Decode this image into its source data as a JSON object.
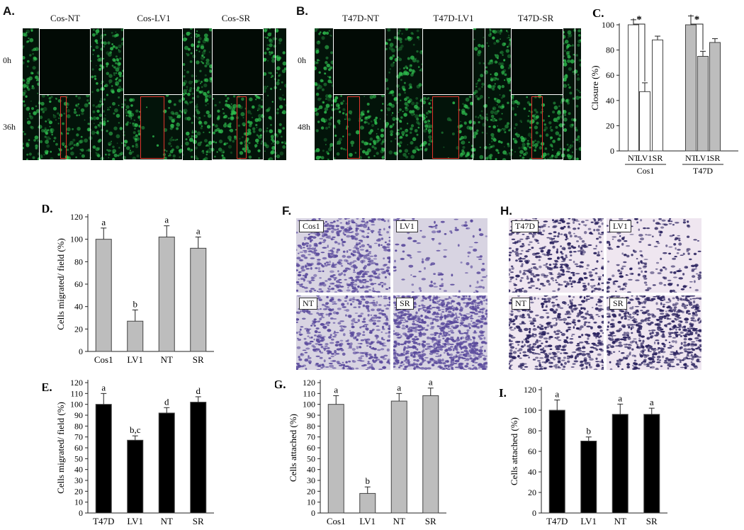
{
  "panels": {
    "A": {
      "letter": "A.",
      "labels": [
        "Cos-NT",
        "Cos-LV1",
        "Cos-SR"
      ],
      "time_top": "0h",
      "time_bottom": "36h"
    },
    "B": {
      "letter": "B.",
      "labels": [
        "T47D-NT",
        "T47D-LV1",
        "T47D-SR"
      ],
      "time_top": "0h",
      "time_bottom": "48h"
    },
    "F": {
      "letter": "F.",
      "tiles": [
        "Cos1",
        "LV1",
        "NT",
        "SR"
      ]
    },
    "H": {
      "letter": "H.",
      "tiles": [
        "T47D",
        "LV1",
        "NT",
        "SR"
      ]
    }
  },
  "colors": {
    "open_bar": "#ffffff",
    "gray_bar": "#bdbdbd",
    "black_bar": "#000000",
    "fluorescence": "#2fbf4f",
    "wound_outline": "#ffffff",
    "gap_box": "#e0342c",
    "stain_violet": "#5a4a9c"
  },
  "chart_data": [
    {
      "id": "C",
      "letter": "C.",
      "type": "bar",
      "ylabel": "Closure (%)",
      "ylim": [
        0,
        100
      ],
      "yticks": [
        0,
        20,
        40,
        60,
        80,
        100
      ],
      "categories": [
        "NT",
        "LV1",
        "SR",
        "NT",
        "LV1",
        "SR"
      ],
      "groups": [
        {
          "name": "Cos1",
          "fill": "open",
          "values": [
            100,
            47,
            88
          ],
          "errors": [
            4,
            7,
            3
          ]
        },
        {
          "name": "T47D",
          "fill": "gray",
          "values": [
            100,
            75,
            86
          ],
          "errors": [
            7,
            4,
            3
          ]
        }
      ],
      "annotations": [
        "*",
        "*"
      ],
      "legend": "none",
      "grid": false
    },
    {
      "id": "D",
      "letter": "D.",
      "type": "bar",
      "ylabel": "Cells migrated/ field (%)",
      "ylim": [
        0,
        120
      ],
      "yticks": [
        0,
        20,
        40,
        60,
        80,
        100,
        120
      ],
      "categories": [
        "Cos1",
        "LV1",
        "NT",
        "SR"
      ],
      "values": [
        100,
        27,
        102,
        92
      ],
      "errors": [
        10,
        10,
        10,
        10
      ],
      "letters": [
        "a",
        "b",
        "a",
        "a"
      ],
      "fill": "gray",
      "legend": "none",
      "grid": false
    },
    {
      "id": "E",
      "letter": "E.",
      "type": "bar",
      "ylabel": "Cells migrated/ field (%)",
      "ylim": [
        0,
        120
      ],
      "yticks": [
        0,
        10,
        20,
        30,
        40,
        50,
        60,
        70,
        80,
        90,
        100,
        110,
        120
      ],
      "categories": [
        "T47D",
        "LV1",
        "NT",
        "SR"
      ],
      "values": [
        100,
        67,
        92,
        102
      ],
      "errors": [
        10,
        4,
        5,
        5
      ],
      "letters": [
        "a",
        "b,c",
        "d",
        "d"
      ],
      "fill": "black",
      "legend": "none",
      "grid": false
    },
    {
      "id": "G",
      "letter": "G.",
      "type": "bar",
      "ylabel": "Cells attached (%)",
      "ylim": [
        0,
        120
      ],
      "yticks": [
        0,
        10,
        20,
        30,
        40,
        50,
        60,
        70,
        80,
        90,
        100,
        110,
        120
      ],
      "categories": [
        "Cos1",
        "LV1",
        "NT",
        "SR"
      ],
      "values": [
        100,
        18,
        103,
        108
      ],
      "errors": [
        8,
        6,
        7,
        7
      ],
      "letters": [
        "a",
        "b",
        "a",
        "a"
      ],
      "fill": "gray",
      "legend": "none",
      "grid": false
    },
    {
      "id": "I",
      "letter": "I.",
      "type": "bar",
      "ylabel": "Cells attached (%)",
      "ylim": [
        0,
        120
      ],
      "yticks": [
        0,
        20,
        40,
        60,
        80,
        100,
        120
      ],
      "categories": [
        "T47D",
        "LV1",
        "NT",
        "SR"
      ],
      "values": [
        100,
        70,
        96,
        96
      ],
      "errors": [
        10,
        4,
        10,
        6
      ],
      "letters": [
        "a",
        "b",
        "a",
        "a"
      ],
      "fill": "black",
      "legend": "none",
      "grid": false
    }
  ]
}
